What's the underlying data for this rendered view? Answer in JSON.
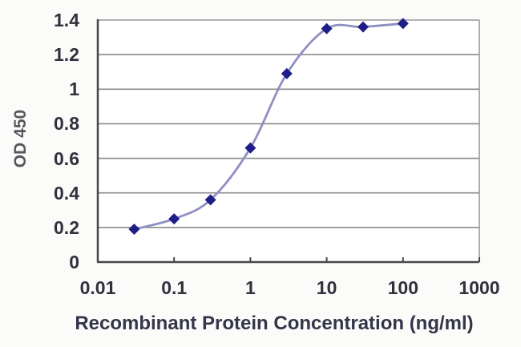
{
  "chart_data": {
    "type": "line",
    "title": "",
    "xlabel": "Recombinant Protein Concentration (ng/ml)",
    "ylabel": "OD 450",
    "x_scale": "log",
    "xlim": [
      0.01,
      1000
    ],
    "ylim": [
      0,
      1.4
    ],
    "x_tick_values": [
      0.01,
      0.1,
      1,
      10,
      100,
      1000
    ],
    "x_tick_labels": [
      "0.01",
      "0.1",
      "1",
      "10",
      "100",
      "1000"
    ],
    "y_tick_values": [
      0,
      0.2,
      0.4,
      0.6,
      0.8,
      1,
      1.2,
      1.4
    ],
    "y_tick_labels": [
      "0",
      "0.2",
      "0.4",
      "0.6",
      "0.8",
      "1",
      "1.2",
      "1.4"
    ],
    "grid": true,
    "legend": false,
    "marker": "diamond",
    "series": [
      {
        "name": "OD 450",
        "x": [
          0.03,
          0.1,
          0.3,
          1,
          3,
          10,
          30,
          100
        ],
        "y": [
          0.19,
          0.25,
          0.36,
          0.66,
          1.09,
          1.35,
          1.36,
          1.38
        ]
      }
    ],
    "colors": {
      "line": "#8f8fc4",
      "marker": "#1e1e88",
      "grid": "#8a8a8a",
      "axis": "#474747",
      "border": "#999999",
      "tick_text": "#31313d",
      "xlabel_text": "#35354a",
      "ylabel_text": "#56565e",
      "plot_background": "#ffffff",
      "page_background": "#fbfbfa"
    }
  }
}
